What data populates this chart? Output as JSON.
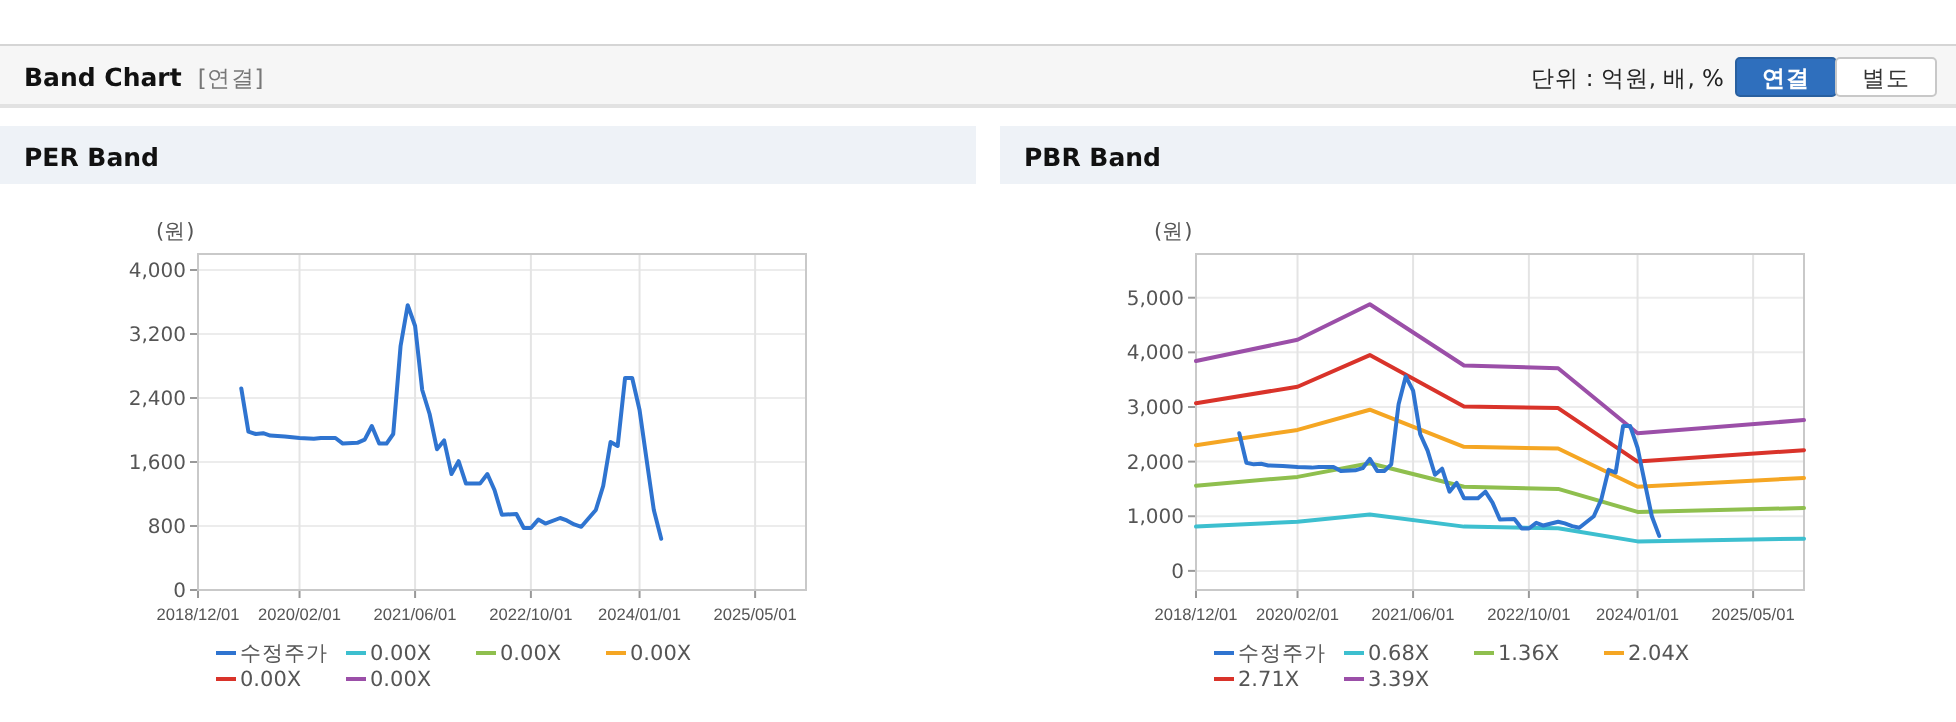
{
  "chart_data": [
    {
      "type": "other",
      "title": "Band Chart",
      "subtitle": "[연결]",
      "annotations": [
        "단위 : 억원, 배, %",
        "연결",
        "별도"
      ]
    },
    {
      "type": "line",
      "title": "PER Band",
      "ylabel": "(원)",
      "xlim": [
        "2018-12-01",
        "2025-12-01"
      ],
      "xticks": [
        {
          "value": "2018-12-01",
          "label": "2018/12/01"
        },
        {
          "value": "2020-02-01",
          "label": "2020/02/01"
        },
        {
          "value": "2021-06-01",
          "label": "2021/06/01"
        },
        {
          "value": "2022-10-01",
          "label": "2022/10/01"
        },
        {
          "value": "2024-01-01",
          "label": "2024/01/01"
        },
        {
          "value": "2025-05-01",
          "label": "2025/05/01"
        }
      ],
      "ylim": [
        0,
        4200
      ],
      "yticks": [
        0,
        {
          "value": 800,
          "label": "800"
        },
        {
          "value": 1600,
          "label": "1,600"
        },
        {
          "value": 2400,
          "label": "2,400"
        },
        {
          "value": 3200,
          "label": "3,200"
        },
        {
          "value": 4000,
          "label": "4,000"
        }
      ],
      "grid": true,
      "legend": "bottom",
      "series": [
        {
          "name": "수정주가",
          "color": "#2f74d0",
          "x": [
            "2019-06",
            "2019-07",
            "2019-08",
            "2019-09",
            "2019-10",
            "2019-12",
            "2020-02",
            "2020-04",
            "2020-05",
            "2020-07",
            "2020-08",
            "2020-10",
            "2020-11",
            "2020-12",
            "2021-01",
            "2021-02",
            "2021-03",
            "2021-04",
            "2021-05",
            "2021-06",
            "2021-07",
            "2021-08",
            "2021-09",
            "2021-10",
            "2021-11",
            "2021-12",
            "2022-01",
            "2022-03",
            "2022-04",
            "2022-05",
            "2022-06",
            "2022-08",
            "2022-09",
            "2022-10",
            "2022-11",
            "2022-12",
            "2023-02",
            "2023-03",
            "2023-04",
            "2023-05",
            "2023-07",
            "2023-08",
            "2023-09",
            "2023-10",
            "2023-11",
            "2023-12",
            "2024-01",
            "2024-02",
            "2024-03",
            "2024-04"
          ],
          "values": [
            2520,
            1980,
            1950,
            1960,
            1930,
            1920,
            1900,
            1890,
            1900,
            1900,
            1830,
            1840,
            1880,
            2050,
            1830,
            1830,
            1950,
            3050,
            3560,
            3300,
            2500,
            2200,
            1760,
            1870,
            1450,
            1610,
            1330,
            1330,
            1450,
            1250,
            940,
            950,
            775,
            775,
            880,
            830,
            900,
            870,
            820,
            790,
            1000,
            1300,
            1850,
            1800,
            2650,
            2650,
            2250,
            1600,
            1000,
            640
          ]
        },
        {
          "name": "0.00X",
          "color": "#3dbfcf"
        },
        {
          "name": "0.00X",
          "color": "#8fbf4e"
        },
        {
          "name": "0.00X",
          "color": "#f5a623"
        },
        {
          "name": "0.00X",
          "color": "#d9332a"
        },
        {
          "name": "0.00X",
          "color": "#9b4fa8"
        }
      ]
    },
    {
      "type": "line",
      "title": "PBR Band",
      "ylabel": "(원)",
      "xlim": [
        "2018-12-01",
        "2025-12-01"
      ],
      "xticks": [
        {
          "value": "2018-12-01",
          "label": "2018/12/01"
        },
        {
          "value": "2020-02-01",
          "label": "2020/02/01"
        },
        {
          "value": "2021-06-01",
          "label": "2021/06/01"
        },
        {
          "value": "2022-10-01",
          "label": "2022/10/01"
        },
        {
          "value": "2024-01-01",
          "label": "2024/01/01"
        },
        {
          "value": "2025-05-01",
          "label": "2025/05/01"
        }
      ],
      "ylim": [
        -350,
        5800
      ],
      "yticks": [
        0,
        {
          "value": 1000,
          "label": "1,000"
        },
        {
          "value": 2000,
          "label": "2,000"
        },
        {
          "value": 3000,
          "label": "3,000"
        },
        {
          "value": 4000,
          "label": "4,000"
        },
        {
          "value": 5000,
          "label": "5,000"
        }
      ],
      "grid": true,
      "legend": "bottom",
      "series": [
        {
          "name": "수정주가",
          "color": "#2f74d0",
          "x": [
            "2019-06",
            "2019-07",
            "2019-08",
            "2019-09",
            "2019-10",
            "2019-12",
            "2020-02",
            "2020-04",
            "2020-05",
            "2020-07",
            "2020-08",
            "2020-10",
            "2020-11",
            "2020-12",
            "2021-01",
            "2021-02",
            "2021-03",
            "2021-04",
            "2021-05",
            "2021-06",
            "2021-07",
            "2021-08",
            "2021-09",
            "2021-10",
            "2021-11",
            "2021-12",
            "2022-01",
            "2022-03",
            "2022-04",
            "2022-05",
            "2022-06",
            "2022-08",
            "2022-09",
            "2022-10",
            "2022-11",
            "2022-12",
            "2023-02",
            "2023-03",
            "2023-04",
            "2023-05",
            "2023-07",
            "2023-08",
            "2023-09",
            "2023-10",
            "2023-11",
            "2023-12",
            "2024-01",
            "2024-02",
            "2024-03",
            "2024-04"
          ],
          "values": [
            2520,
            1980,
            1950,
            1960,
            1930,
            1920,
            1900,
            1890,
            1900,
            1900,
            1830,
            1840,
            1880,
            2050,
            1830,
            1830,
            1950,
            3050,
            3560,
            3300,
            2500,
            2200,
            1760,
            1870,
            1450,
            1610,
            1330,
            1330,
            1450,
            1250,
            940,
            950,
            775,
            775,
            880,
            830,
            900,
            870,
            820,
            790,
            1000,
            1300,
            1850,
            1800,
            2650,
            2650,
            2250,
            1600,
            1000,
            640
          ]
        },
        {
          "name": "0.68X",
          "color": "#3dbfcf",
          "x": [
            "2018-12",
            "2020-02",
            "2020-12",
            "2022-01",
            "2023-02",
            "2024-01",
            "2025-12"
          ],
          "values": [
            810,
            900,
            1030,
            810,
            780,
            540,
            590
          ]
        },
        {
          "name": "1.36X",
          "color": "#8fbf4e",
          "x": [
            "2018-12",
            "2020-02",
            "2020-12",
            "2022-01",
            "2023-02",
            "2024-01",
            "2025-12"
          ],
          "values": [
            1560,
            1720,
            1970,
            1540,
            1500,
            1080,
            1150
          ]
        },
        {
          "name": "2.04X",
          "color": "#f5a623",
          "x": [
            "2018-12",
            "2020-02",
            "2020-12",
            "2022-01",
            "2023-02",
            "2024-01",
            "2025-12"
          ],
          "values": [
            2300,
            2580,
            2950,
            2270,
            2240,
            1540,
            1700
          ]
        },
        {
          "name": "2.71X",
          "color": "#d9332a",
          "x": [
            "2018-12",
            "2020-02",
            "2020-12",
            "2022-01",
            "2023-02",
            "2024-01",
            "2025-12"
          ],
          "values": [
            3070,
            3370,
            3950,
            3010,
            2980,
            2000,
            2210
          ]
        },
        {
          "name": "3.39X",
          "color": "#9b4fa8",
          "x": [
            "2018-12",
            "2020-02",
            "2020-12",
            "2022-01",
            "2023-02",
            "2024-01",
            "2025-12"
          ],
          "values": [
            3840,
            4230,
            4880,
            3760,
            3710,
            2520,
            2760
          ]
        }
      ]
    }
  ]
}
